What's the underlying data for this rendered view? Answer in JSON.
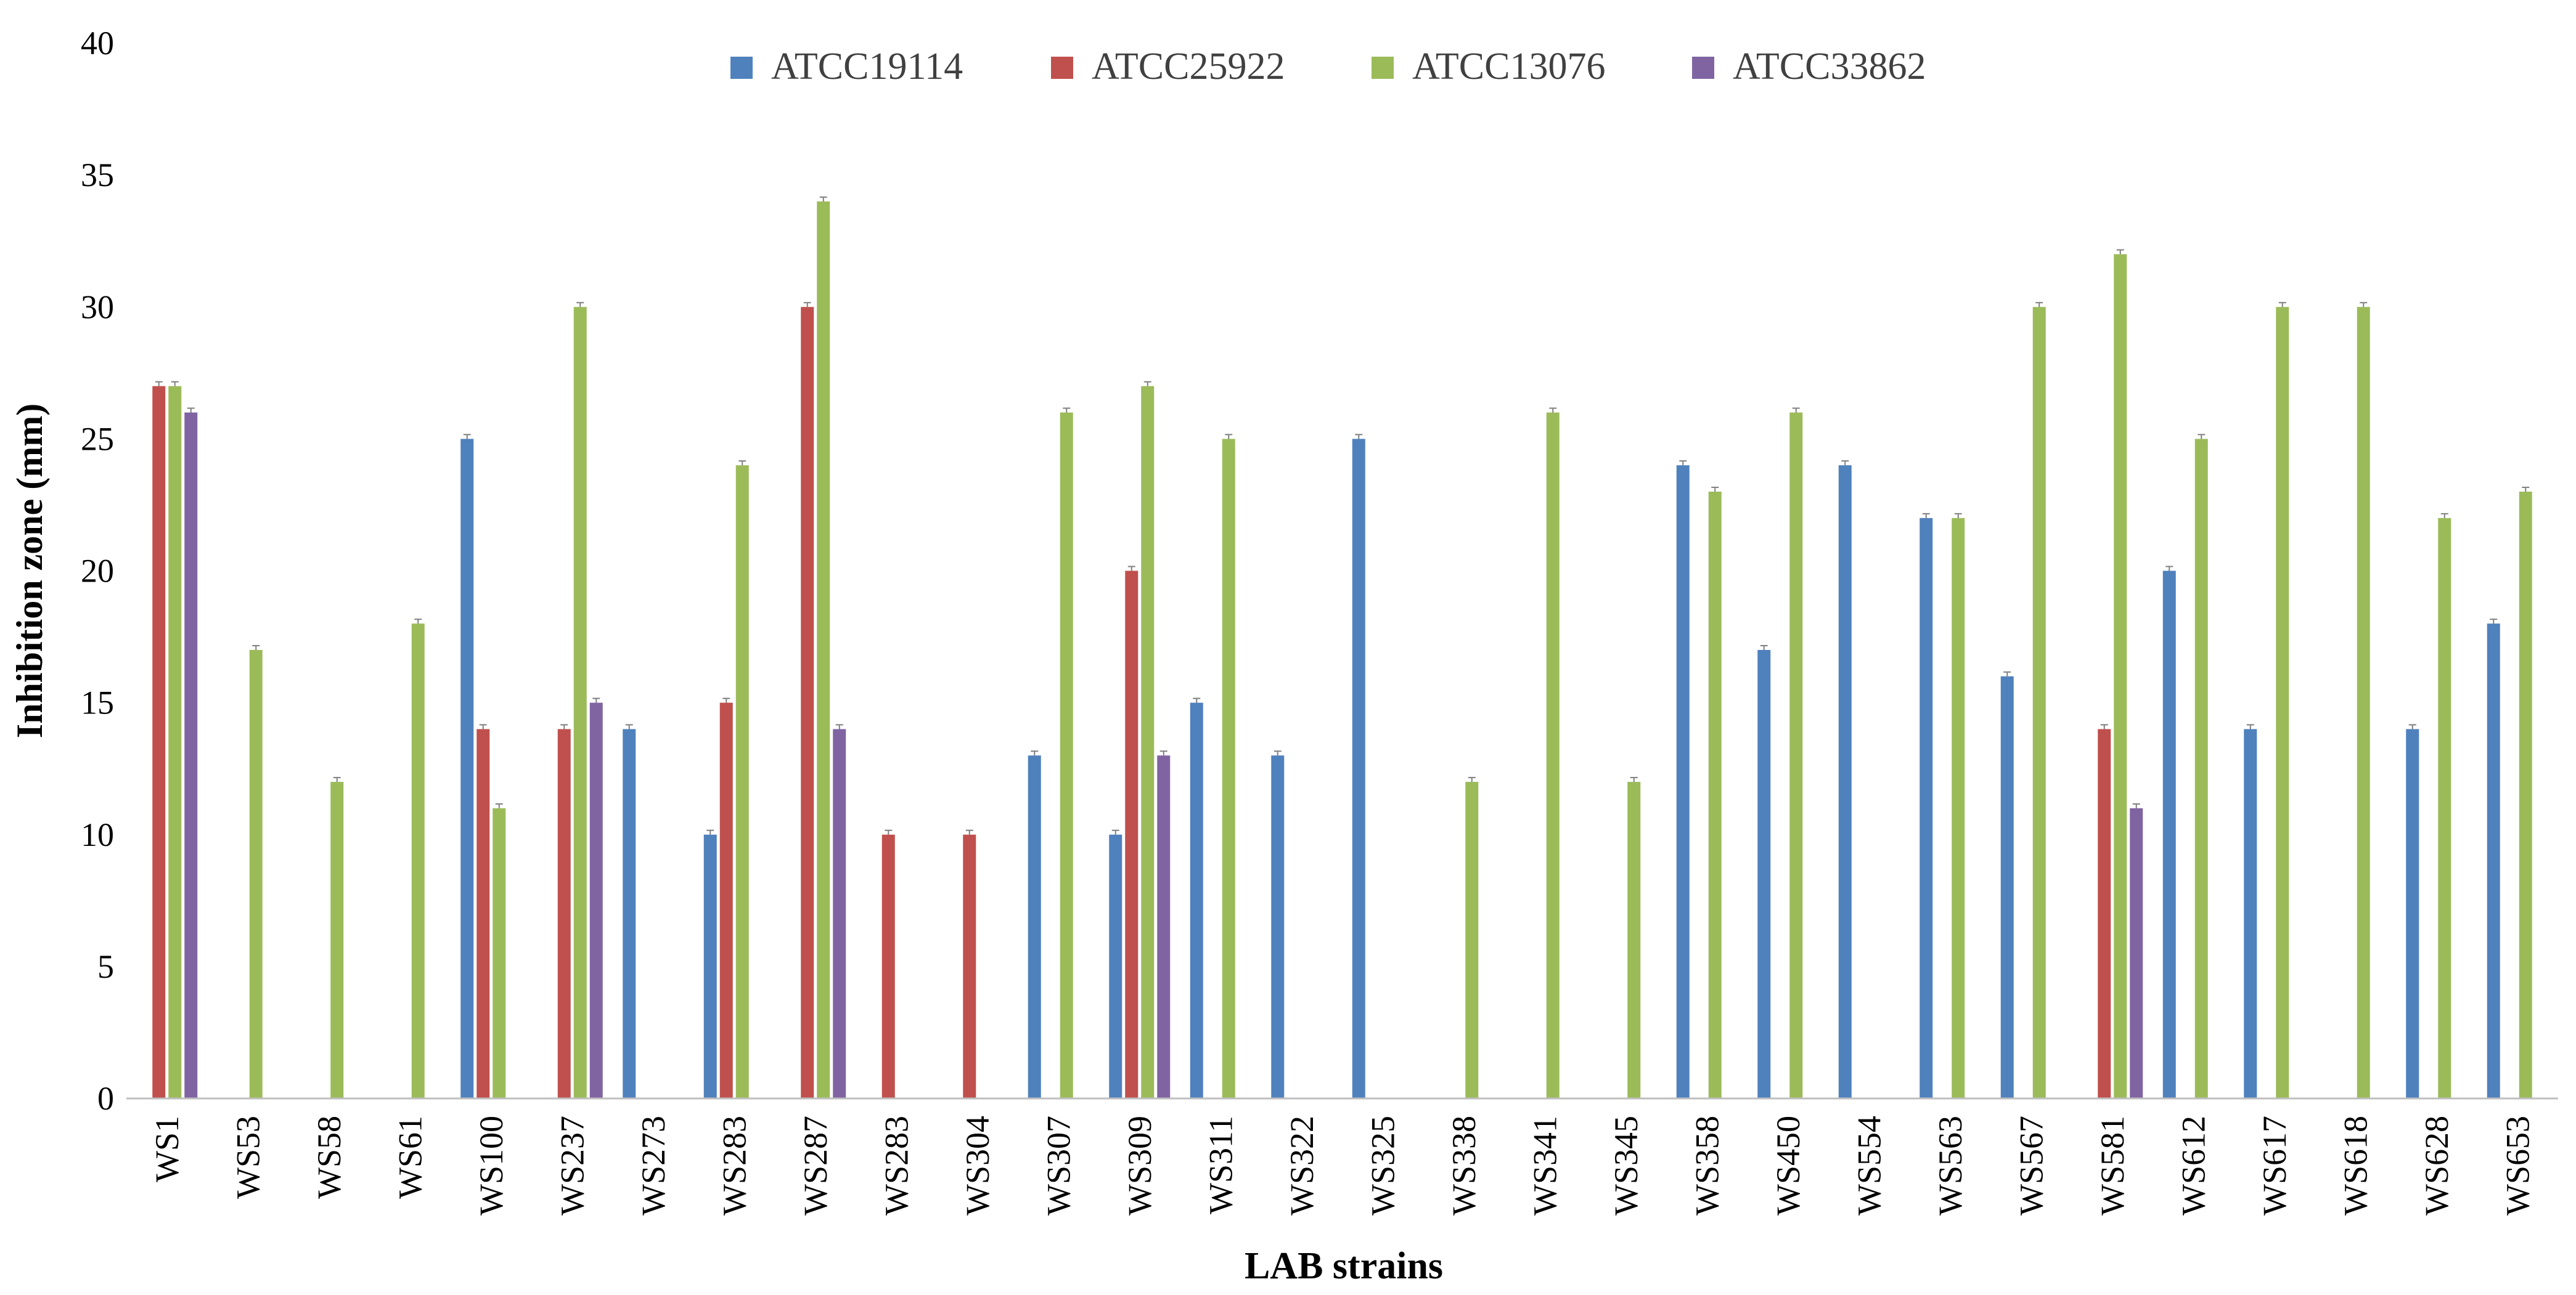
{
  "chart_data": {
    "type": "bar",
    "title": "",
    "xlabel": "LAB strains",
    "ylabel": "Inhibition zone (mm)",
    "ylim": [
      0,
      40
    ],
    "yticks": [
      0,
      5,
      10,
      15,
      20,
      25,
      30,
      35,
      40
    ],
    "grid": false,
    "legend_position": "top-center",
    "categories": [
      "WS1",
      "WS53",
      "WS58",
      "WS61",
      "WS100",
      "WS237",
      "WS273",
      "WS283",
      "WS287",
      "WS283",
      "WS304",
      "WS307",
      "WS309",
      "WS311",
      "WS322",
      "WS325",
      "WS338",
      "WS341",
      "WS345",
      "WS358",
      "WS450",
      "WS554",
      "WS563",
      "WS567",
      "WS581",
      "WS612",
      "WS617",
      "WS618",
      "WS628",
      "WS653"
    ],
    "series": [
      {
        "name": "ATCC19114",
        "color": "#4F81BD",
        "values": [
          0,
          0,
          0,
          0,
          25,
          0,
          14,
          10,
          0,
          0,
          0,
          13,
          10,
          15,
          13,
          25,
          0,
          0,
          0,
          24,
          17,
          24,
          22,
          16,
          0,
          20,
          14,
          0,
          14,
          18
        ]
      },
      {
        "name": "ATCC25922",
        "color": "#C0504D",
        "values": [
          27,
          0,
          0,
          0,
          14,
          14,
          0,
          15,
          30,
          10,
          10,
          0,
          20,
          0,
          0,
          0,
          0,
          0,
          0,
          0,
          0,
          0,
          0,
          0,
          14,
          0,
          0,
          0,
          0,
          0
        ]
      },
      {
        "name": "ATCC13076",
        "color": "#9BBB59",
        "values": [
          27,
          17,
          12,
          18,
          11,
          30,
          0,
          24,
          34,
          0,
          0,
          26,
          27,
          25,
          0,
          0,
          12,
          26,
          12,
          23,
          26,
          0,
          22,
          30,
          32,
          25,
          30,
          30,
          22,
          23
        ]
      },
      {
        "name": "ATCC33862",
        "color": "#8064A2",
        "values": [
          26,
          0,
          0,
          0,
          0,
          15,
          0,
          0,
          14,
          0,
          0,
          0,
          13,
          0,
          0,
          0,
          0,
          0,
          0,
          0,
          0,
          0,
          0,
          0,
          11,
          0,
          0,
          0,
          0,
          0
        ]
      }
    ]
  }
}
